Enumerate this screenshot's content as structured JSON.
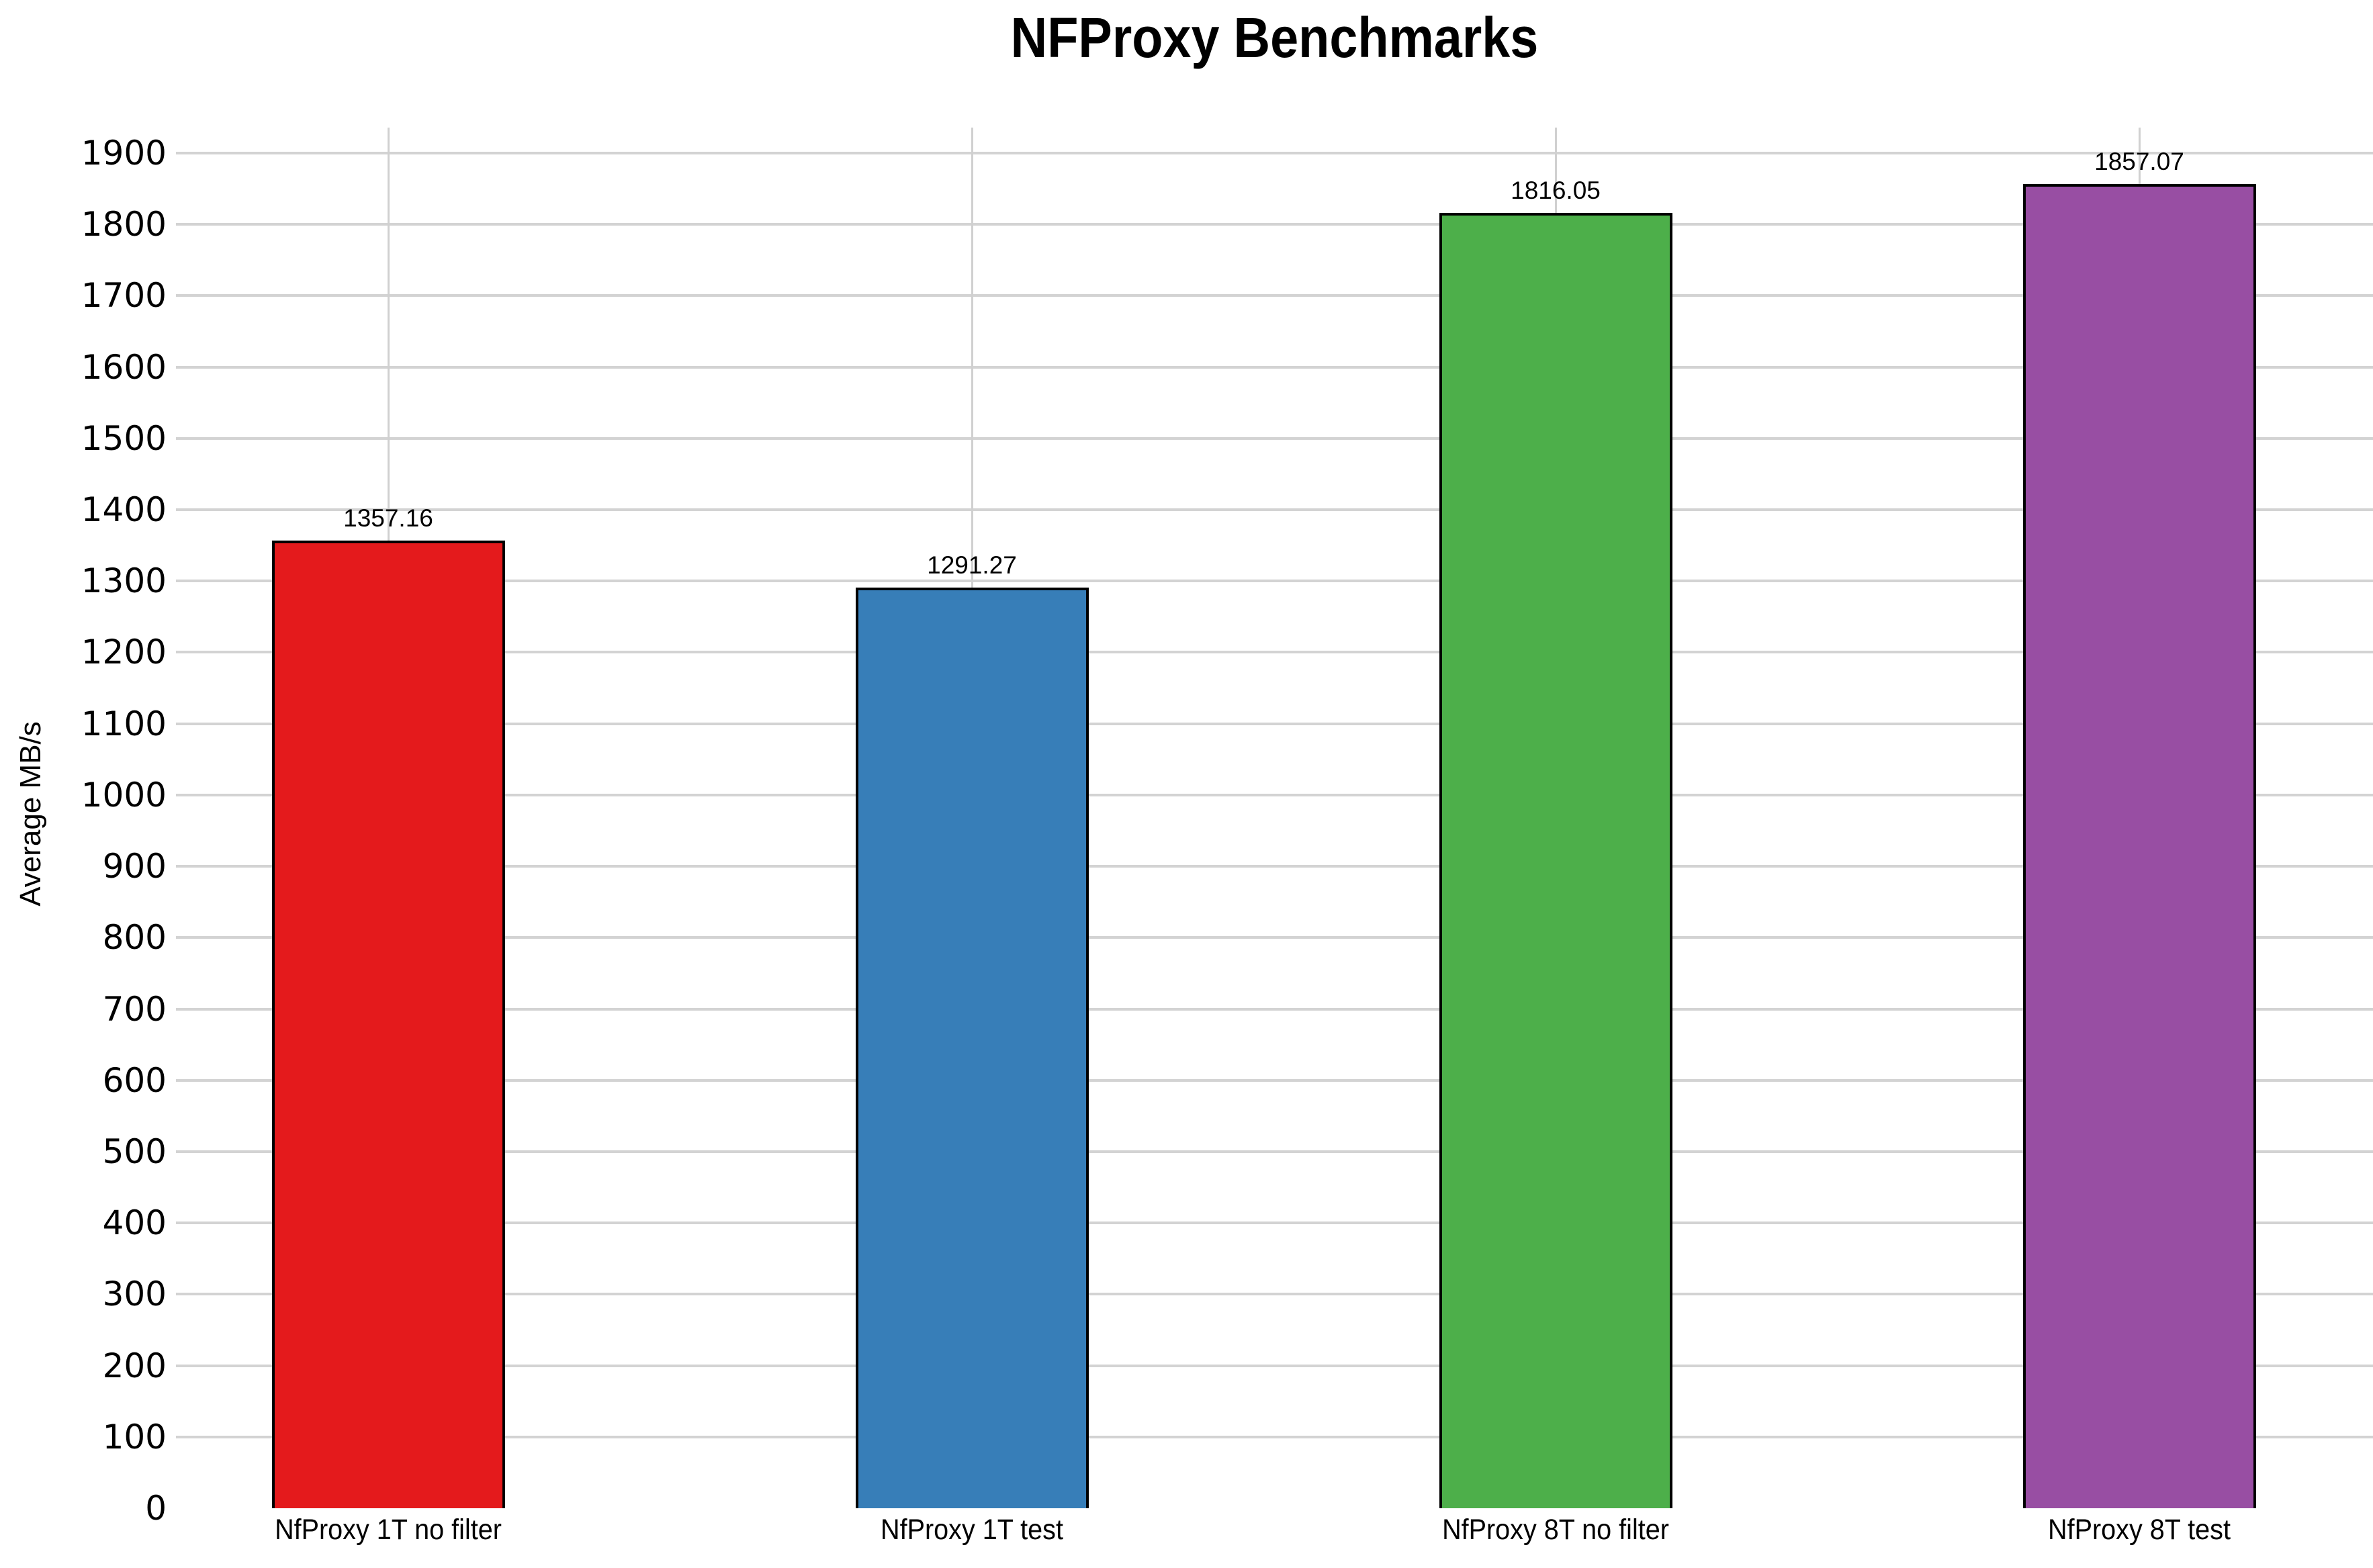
{
  "chart_data": {
    "type": "bar",
    "title": "NFProxy Benchmarks",
    "ylabel": "Average MB/s",
    "xlabel": "",
    "categories": [
      "NfProxy 1T no filter",
      "NfProxy 1T test",
      "NfProxy 8T no filter",
      "NfProxy 8T test"
    ],
    "values": [
      1357.16,
      1291.27,
      1816.05,
      1857.07
    ],
    "value_labels": [
      "1357.16",
      "1291.27",
      "1816.05",
      "1857.07"
    ],
    "series": [
      {
        "name": "Average MB/s",
        "values": [
          1357.16,
          1291.27,
          1816.05,
          1857.07
        ]
      }
    ],
    "bar_colors": [
      "#e41a1c",
      "#377eb8",
      "#4daf4a",
      "#984ea3"
    ],
    "bar_border_color": "#000000",
    "ylim": [
      0,
      1900
    ],
    "ytick_step": 100,
    "ytick_labels": [
      "0",
      "100",
      "200",
      "300",
      "400",
      "500",
      "600",
      "700",
      "800",
      "900",
      "1000",
      "1100",
      "1200",
      "1300",
      "1400",
      "1500",
      "1600",
      "1700",
      "1800",
      "1900"
    ],
    "grid": true,
    "h_gridline_color": "#d3d3d3",
    "v_gridline_color": "#d0d0d0",
    "background_color": "#ffffff",
    "legend_position": "none"
  }
}
